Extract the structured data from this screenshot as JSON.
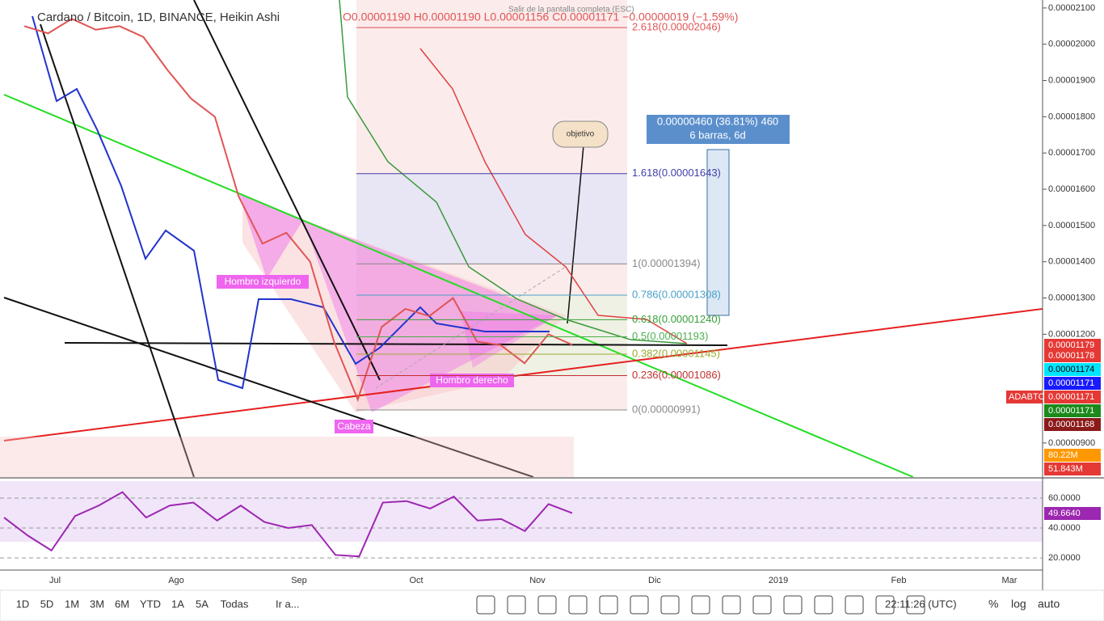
{
  "header": {
    "symbol": "Cardano / Bitcoin, 1D, BINANCE, Heikin Ashi",
    "ohlc": "O0.00001190 H0.00001190 L0.00001156 C0.00001171 −0.00000019 (−1.59%)",
    "tooltip": "Salir de la pantalla completa (ESC)"
  },
  "price_chart": {
    "type": "line",
    "color": "#e05555",
    "ylim": [
      8.06e-06,
      2.122e-05
    ],
    "yticks": [
      {
        "value": 2.1e-05,
        "label": "0.00002100"
      },
      {
        "value": 2e-05,
        "label": "0.00002000"
      },
      {
        "value": 1.9e-05,
        "label": "0.00001900"
      },
      {
        "value": 1.8e-05,
        "label": "0.00001800"
      },
      {
        "value": 1.7e-05,
        "label": "0.00001700"
      },
      {
        "value": 1.6e-05,
        "label": "0.00001600"
      },
      {
        "value": 1.5e-05,
        "label": "0.00001500"
      },
      {
        "value": 1.4e-05,
        "label": "0.00001400"
      },
      {
        "value": 1.3e-05,
        "label": "0.00001300"
      },
      {
        "value": 1.2e-05,
        "label": "0.00001200"
      },
      {
        "value": 9e-06,
        "label": "0.00000900"
      }
    ],
    "values": [
      2.05e-05,
      2.03e-05,
      2.07e-05,
      2.04e-05,
      2.05e-05,
      2.02e-05,
      1.93e-05,
      1.85e-05,
      1.8e-05,
      1.58e-05,
      1.45e-05,
      1.48e-05,
      1.4e-05,
      1.18e-05,
      1.02e-05,
      1.22e-05,
      1.27e-05,
      1.25e-05,
      1.3e-05,
      1.18e-05,
      1.17e-05,
      1.12e-05,
      1.2e-05,
      1.171e-05
    ],
    "fib_levels": [
      {
        "label": "2.618(0.00002046)",
        "price": 2.046e-05,
        "color": "#e05555"
      },
      {
        "label": "1.618(0.00001643)",
        "price": 1.643e-05,
        "color": "#3f3fa8"
      },
      {
        "label": "1(0.00001394)",
        "price": 1.394e-05,
        "color": "#888888"
      },
      {
        "label": "0.786(0.00001308)",
        "price": 1.308e-05,
        "color": "#4aa0c8"
      },
      {
        "label": "0.618(0.00001240)",
        "price": 1.24e-05,
        "color": "#38a038"
      },
      {
        "label": "0.5(0.00001193)",
        "price": 1.193e-05,
        "color": "#4caf50"
      },
      {
        "label": "0.382(0.00001145)",
        "price": 1.145e-05,
        "color": "#9aaa30"
      },
      {
        "label": "0.236(0.00001086)",
        "price": 1.086e-05,
        "color": "#c03030"
      },
      {
        "label": "0(0.00000991)",
        "price": 9.91e-06,
        "color": "#888888"
      }
    ],
    "months": [
      "Jul",
      "Ago",
      "Sep",
      "Oct",
      "Nov",
      "Dic",
      "2019",
      "Feb",
      "Mar"
    ],
    "annotations": {
      "left_shoulder": "Hombro izquierdo",
      "right_shoulder": "Hombro derecho",
      "head": "Cabeza",
      "target": "objetivo",
      "measure": "0.00000460 (36.81%) 460",
      "measure_bars": "6 barras, 6d"
    },
    "price_labels": [
      {
        "text": "0.00001179",
        "color": "#e53935"
      },
      {
        "text": "0.00001178",
        "color": "#e53935"
      },
      {
        "text": "0.00001174",
        "color": "#00e5ff"
      },
      {
        "text": "0.00001171",
        "color": "#1a1aff"
      },
      {
        "text": "ADABTC",
        "color": "#e53935"
      },
      {
        "text": "0.00001171",
        "color": "#e53935"
      },
      {
        "text": "0.00001171",
        "color": "#1b8a1b"
      },
      {
        "text": "0.00001168",
        "color": "#8b1a1a"
      },
      {
        "text": "80.22M",
        "color": "#ff9800"
      },
      {
        "text": "51.843M",
        "color": "#e53935"
      }
    ]
  },
  "rsi_chart": {
    "type": "line",
    "color": "#9c27b0",
    "ylim": [
      11.9,
      71.35
    ],
    "yticks": [
      {
        "value": 60,
        "label": "60.0000"
      },
      {
        "value": 40,
        "label": "40.0000"
      },
      {
        "value": 20,
        "label": "20.0000"
      }
    ],
    "values": [
      47,
      35,
      25,
      48,
      55,
      64,
      47,
      55,
      57,
      45,
      55,
      44,
      40,
      42,
      22,
      21,
      57,
      58,
      53,
      61,
      45,
      46,
      38,
      56,
      50
    ],
    "last_label": "49.6640"
  },
  "toolbar": {
    "ranges": [
      "1D",
      "5D",
      "1M",
      "3M",
      "6M",
      "YTD",
      "1A",
      "5A",
      "Todas"
    ],
    "goto": "Ir a...",
    "time": "22:11:26 (UTC)",
    "percent": "%",
    "log": "log",
    "auto": "auto"
  }
}
